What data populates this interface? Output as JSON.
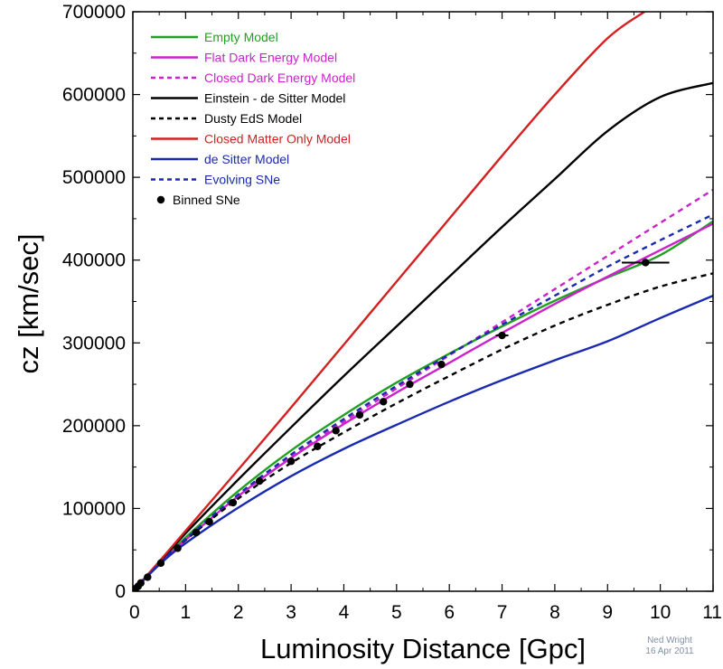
{
  "chart_data": {
    "type": "line",
    "xlabel": "Luminosity Distance [Gpc]",
    "ylabel": "cz [km/sec]",
    "xlim": [
      0,
      11
    ],
    "ylim": [
      0,
      700000
    ],
    "xticks": [
      0,
      1,
      2,
      3,
      4,
      5,
      6,
      7,
      8,
      9,
      10,
      11
    ],
    "yticks": [
      0,
      100000,
      200000,
      300000,
      400000,
      500000,
      600000,
      700000
    ],
    "legend_position": "top-left",
    "series": [
      {
        "name": "Empty Model",
        "color": "#22a022",
        "dash": false,
        "points": [
          [
            0,
            0
          ],
          [
            0.5,
            34000
          ],
          [
            1,
            65000
          ],
          [
            2,
            121000
          ],
          [
            3,
            170000
          ],
          [
            4,
            213000
          ],
          [
            5,
            252000
          ],
          [
            6,
            287000
          ],
          [
            7,
            320000
          ],
          [
            8,
            351000
          ],
          [
            9,
            379000
          ],
          [
            10,
            406000
          ],
          [
            11,
            447000
          ]
        ]
      },
      {
        "name": "Flat Dark Energy Model",
        "color": "#cc22cc",
        "dash": false,
        "points": [
          [
            0,
            0
          ],
          [
            0.5,
            33000
          ],
          [
            1,
            62000
          ],
          [
            2,
            115000
          ],
          [
            3,
            161000
          ],
          [
            4,
            202000
          ],
          [
            5,
            240000
          ],
          [
            6,
            276000
          ],
          [
            7,
            312000
          ],
          [
            8,
            347000
          ],
          [
            9,
            380000
          ],
          [
            10,
            412000
          ],
          [
            11,
            444000
          ]
        ]
      },
      {
        "name": "Closed Dark Energy Model",
        "color": "#cc22cc",
        "dash": true,
        "points": [
          [
            0,
            0
          ],
          [
            0.5,
            33000
          ],
          [
            1,
            62000
          ],
          [
            2,
            116000
          ],
          [
            3,
            162000
          ],
          [
            4,
            205000
          ],
          [
            5,
            245000
          ],
          [
            6,
            285000
          ],
          [
            7,
            325000
          ],
          [
            8,
            365000
          ],
          [
            9,
            405000
          ],
          [
            10,
            445000
          ],
          [
            11,
            485000
          ]
        ]
      },
      {
        "name": "Einstein - de Sitter Model",
        "color": "#000000",
        "dash": false,
        "points": [
          [
            0,
            0
          ],
          [
            0.5,
            35000
          ],
          [
            1,
            70000
          ],
          [
            2,
            135000
          ],
          [
            3,
            198000
          ],
          [
            4,
            260000
          ],
          [
            5,
            320000
          ],
          [
            6,
            380000
          ],
          [
            7,
            440000
          ],
          [
            8,
            498000
          ],
          [
            9,
            556000
          ],
          [
            10,
            597000
          ],
          [
            11,
            614000
          ]
        ]
      },
      {
        "name": "Dusty EdS Model",
        "color": "#000000",
        "dash": true,
        "points": [
          [
            0,
            0
          ],
          [
            0.5,
            33000
          ],
          [
            1,
            62000
          ],
          [
            2,
            112000
          ],
          [
            3,
            155000
          ],
          [
            4,
            192000
          ],
          [
            5,
            227000
          ],
          [
            6,
            260000
          ],
          [
            7,
            292000
          ],
          [
            8,
            321000
          ],
          [
            9,
            346000
          ],
          [
            10,
            368000
          ],
          [
            11,
            384000
          ]
        ]
      },
      {
        "name": "Closed Matter Only Model",
        "color": "#d42020",
        "dash": false,
        "points": [
          [
            0,
            0
          ],
          [
            0.5,
            36000
          ],
          [
            1,
            73000
          ],
          [
            2,
            147000
          ],
          [
            3,
            222000
          ],
          [
            4,
            298000
          ],
          [
            5,
            374000
          ],
          [
            6,
            450000
          ],
          [
            7,
            526000
          ],
          [
            8,
            600000
          ],
          [
            9,
            668000
          ],
          [
            9.7,
            700000
          ]
        ]
      },
      {
        "name": "de Sitter Model",
        "color": "#1a2ab0",
        "dash": false,
        "points": [
          [
            0,
            0
          ],
          [
            0.5,
            32000
          ],
          [
            1,
            58000
          ],
          [
            2,
            101000
          ],
          [
            3,
            139000
          ],
          [
            4,
            172000
          ],
          [
            5,
            201000
          ],
          [
            6,
            229000
          ],
          [
            7,
            255000
          ],
          [
            8,
            279000
          ],
          [
            9,
            302000
          ],
          [
            10,
            330000
          ],
          [
            11,
            357000
          ]
        ]
      },
      {
        "name": "Evolving SNe",
        "color": "#1a2ab0",
        "dash": true,
        "points": [
          [
            0,
            0
          ],
          [
            0.5,
            33000
          ],
          [
            1,
            63000
          ],
          [
            2,
            117000
          ],
          [
            3,
            165000
          ],
          [
            4,
            208000
          ],
          [
            5,
            248000
          ],
          [
            6,
            286000
          ],
          [
            7,
            322000
          ],
          [
            8,
            357000
          ],
          [
            9,
            392000
          ],
          [
            10,
            424000
          ],
          [
            11,
            455000
          ]
        ]
      }
    ],
    "binned_sne": {
      "name": "Binned SNe",
      "color": "#000000",
      "points": [
        {
          "x": 0.05,
          "y": 3000,
          "xerr": 0
        },
        {
          "x": 0.1,
          "y": 6000,
          "xerr": 0
        },
        {
          "x": 0.15,
          "y": 10000,
          "xerr": 0
        },
        {
          "x": 0.28,
          "y": 17000,
          "xerr": 0
        },
        {
          "x": 0.53,
          "y": 34000,
          "xerr": 0
        },
        {
          "x": 0.85,
          "y": 52000,
          "xerr": 0
        },
        {
          "x": 1.2,
          "y": 71000,
          "xerr": 0
        },
        {
          "x": 1.45,
          "y": 84000,
          "xerr": 0
        },
        {
          "x": 1.9,
          "y": 107000,
          "xerr": 0
        },
        {
          "x": 2.4,
          "y": 133000,
          "xerr": 0
        },
        {
          "x": 3.0,
          "y": 157000,
          "xerr": 0
        },
        {
          "x": 3.5,
          "y": 175000,
          "xerr": 0
        },
        {
          "x": 3.85,
          "y": 194000,
          "xerr": 0
        },
        {
          "x": 4.3,
          "y": 213000,
          "xerr": 0
        },
        {
          "x": 4.75,
          "y": 229000,
          "xerr": 0
        },
        {
          "x": 5.25,
          "y": 250000,
          "xerr": 0
        },
        {
          "x": 5.85,
          "y": 274000,
          "xerr": 0
        },
        {
          "x": 7.0,
          "y": 309000,
          "xerr": 0.12
        },
        {
          "x": 9.72,
          "y": 397000,
          "xerr": 0.45
        }
      ]
    }
  },
  "credit": {
    "line1": "Ned Wright",
    "line2": "16 Apr 2011"
  }
}
